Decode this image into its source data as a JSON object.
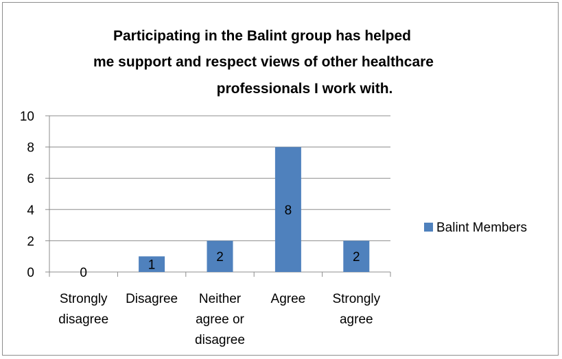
{
  "chart_data": {
    "type": "bar",
    "title_lines": [
      "Participating in the Balint group has helped",
      "me support and respect views of other healthcare",
      "professionals I work with."
    ],
    "categories": [
      [
        "Strongly",
        "disagree"
      ],
      [
        "Disagree"
      ],
      [
        "Neither",
        "agree or",
        "disagree"
      ],
      [
        "Agree"
      ],
      [
        "Strongly",
        "agree"
      ]
    ],
    "series": [
      {
        "name": "Balint Members",
        "values": [
          0,
          1,
          2,
          8,
          2
        ],
        "color": "#4f81bd"
      }
    ],
    "ylim": [
      0,
      10
    ],
    "yticks": [
      0,
      2,
      4,
      6,
      8,
      10
    ],
    "grid": true,
    "legend_position": "right",
    "data_labels": true
  }
}
